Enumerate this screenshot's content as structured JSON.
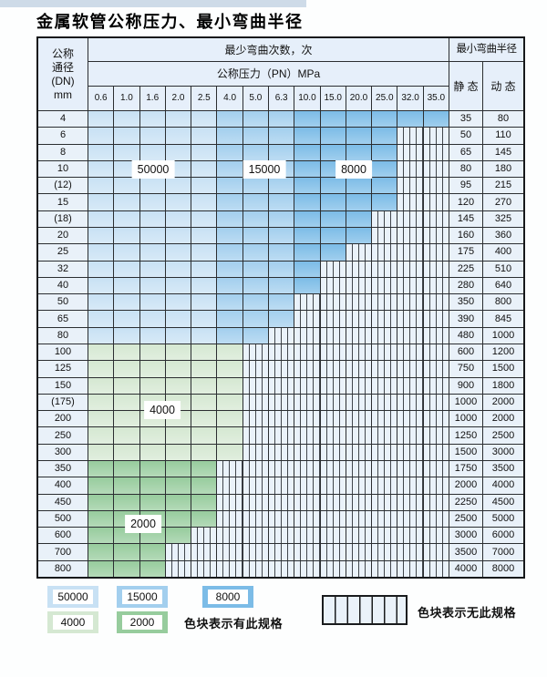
{
  "title": "金属软管公称压力、最小弯曲半径",
  "colors": {
    "c50000": "#c8e1f4",
    "c15000": "#a3cfee",
    "c8000": "#7cbce7",
    "c4000": "#d5e8d2",
    "c2000": "#97cc9d",
    "hatch_bg": "#eaf2fa",
    "cell_bg": "#e9f1f9",
    "header_bg": "#e6effa",
    "grid_line": "#2b2e31",
    "top_strip": "#cedbe8"
  },
  "table": {
    "dn_header_lines": [
      "公称",
      "通径",
      "(DN)",
      "mm"
    ],
    "bend_times_header": "最少弯曲次数，次",
    "pressure_header": "公称压力（PN）MPa",
    "pressure_columns": [
      "0.6",
      "1.0",
      "1.6",
      "2.0",
      "2.5",
      "4.0",
      "5.0",
      "6.3",
      "10.0",
      "15.0",
      "20.0",
      "25.0",
      "32.0",
      "35.0"
    ],
    "radius_header": "最小弯曲半径",
    "static_header": "静 态",
    "dynamic_header": "动 态",
    "block_labels": {
      "l50000": "50000",
      "l15000": "15000",
      "l8000": "8000",
      "l4000": "4000",
      "l2000": "2000"
    },
    "rows": [
      {
        "dn": "4",
        "spec": "blue",
        "colored": 14,
        "static": "35",
        "dynamic": "80"
      },
      {
        "dn": "6",
        "spec": "blue",
        "colored": 12,
        "static": "50",
        "dynamic": "110"
      },
      {
        "dn": "8",
        "spec": "blue",
        "colored": 12,
        "static": "65",
        "dynamic": "145"
      },
      {
        "dn": "10",
        "spec": "blue",
        "colored": 12,
        "static": "80",
        "dynamic": "180"
      },
      {
        "dn": "(12)",
        "spec": "blue",
        "colored": 12,
        "static": "95",
        "dynamic": "215"
      },
      {
        "dn": "15",
        "spec": "blue",
        "colored": 12,
        "static": "120",
        "dynamic": "270"
      },
      {
        "dn": "(18)",
        "spec": "blue",
        "colored": 11,
        "static": "145",
        "dynamic": "325"
      },
      {
        "dn": "20",
        "spec": "blue",
        "colored": 11,
        "static": "160",
        "dynamic": "360"
      },
      {
        "dn": "25",
        "spec": "blue",
        "colored": 10,
        "static": "175",
        "dynamic": "400"
      },
      {
        "dn": "32",
        "spec": "blue",
        "colored": 9,
        "static": "225",
        "dynamic": "510"
      },
      {
        "dn": "40",
        "spec": "blue",
        "colored": 9,
        "static": "280",
        "dynamic": "640"
      },
      {
        "dn": "50",
        "spec": "blue",
        "colored": 8,
        "static": "350",
        "dynamic": "800"
      },
      {
        "dn": "65",
        "spec": "blue",
        "colored": 8,
        "static": "390",
        "dynamic": "845"
      },
      {
        "dn": "80",
        "spec": "blue",
        "colored": 7,
        "static": "480",
        "dynamic": "1000"
      },
      {
        "dn": "100",
        "spec": "g4",
        "colored": 6,
        "static": "600",
        "dynamic": "1200"
      },
      {
        "dn": "125",
        "spec": "g4",
        "colored": 6,
        "static": "750",
        "dynamic": "1500"
      },
      {
        "dn": "150",
        "spec": "g4",
        "colored": 6,
        "static": "900",
        "dynamic": "1800"
      },
      {
        "dn": "(175)",
        "spec": "g4",
        "colored": 6,
        "static": "1000",
        "dynamic": "2000"
      },
      {
        "dn": "200",
        "spec": "g4",
        "colored": 6,
        "static": "1000",
        "dynamic": "2000"
      },
      {
        "dn": "250",
        "spec": "g4",
        "colored": 6,
        "static": "1250",
        "dynamic": "2500"
      },
      {
        "dn": "300",
        "spec": "g4",
        "colored": 6,
        "static": "1500",
        "dynamic": "3000"
      },
      {
        "dn": "350",
        "spec": "g2",
        "colored": 5,
        "static": "1750",
        "dynamic": "3500"
      },
      {
        "dn": "400",
        "spec": "g2",
        "colored": 5,
        "static": "2000",
        "dynamic": "4000"
      },
      {
        "dn": "450",
        "spec": "g2",
        "colored": 5,
        "static": "2250",
        "dynamic": "4500"
      },
      {
        "dn": "500",
        "spec": "g2",
        "colored": 5,
        "static": "2500",
        "dynamic": "5000"
      },
      {
        "dn": "600",
        "spec": "g2",
        "colored": 4,
        "static": "3000",
        "dynamic": "6000"
      },
      {
        "dn": "700",
        "spec": "g2",
        "colored": 3,
        "static": "3500",
        "dynamic": "7000"
      },
      {
        "dn": "800",
        "spec": "g2",
        "colored": 3,
        "static": "4000",
        "dynamic": "8000"
      }
    ]
  },
  "legend": {
    "items": [
      {
        "value": "50000",
        "color": "#c8e1f4"
      },
      {
        "value": "15000",
        "color": "#a3cfee"
      },
      {
        "value": "8000",
        "color": "#7cbce7"
      },
      {
        "value": "4000",
        "color": "#d5e8d2"
      },
      {
        "value": "2000",
        "color": "#97cc9d"
      }
    ],
    "has_spec_text": "色块表示有此规格",
    "no_spec_text": "色块表示无此规格"
  }
}
